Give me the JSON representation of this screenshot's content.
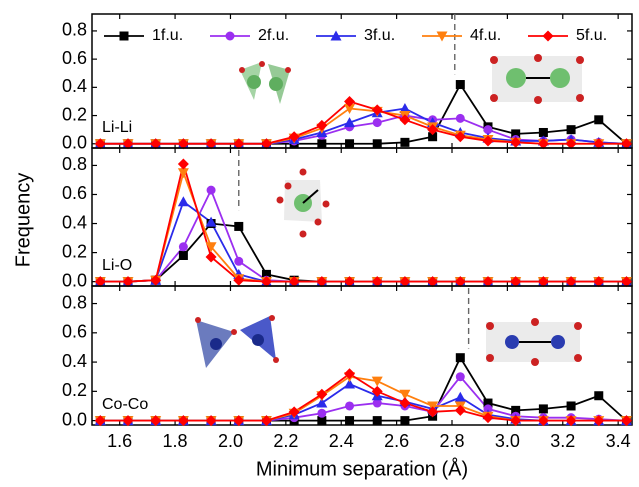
{
  "figure": {
    "xlabel": "Minimum separation (Å)",
    "ylabel": "Frequency"
  },
  "chart_data": [
    {
      "type": "line",
      "annotation": "Li-Li",
      "vline": 2.81,
      "x": [
        1.53,
        1.63,
        1.73,
        1.83,
        1.93,
        2.03,
        2.13,
        2.23,
        2.33,
        2.43,
        2.53,
        2.63,
        2.73,
        2.83,
        2.93,
        3.03,
        3.13,
        3.23,
        3.33,
        3.43
      ],
      "xlim": [
        1.5,
        3.45
      ],
      "ylim": [
        -0.03,
        0.92
      ],
      "xticks": [
        1.6,
        1.8,
        {
          "value": 2,
          "label": "2.0"
        },
        2.2,
        2.4,
        2.6,
        2.8,
        {
          "value": 3,
          "label": "3.0"
        },
        3.2,
        3.4
      ],
      "yticks": [
        {
          "value": 0,
          "label": "0.0"
        },
        0.2,
        0.4,
        0.6,
        0.8
      ],
      "series": [
        {
          "name": "1f.u.",
          "color": "#000000",
          "marker": "square",
          "values": [
            0,
            0,
            0,
            0,
            0,
            0,
            0,
            0,
            0,
            0,
            0,
            0.01,
            0.05,
            0.42,
            0.12,
            0.07,
            0.08,
            0.1,
            0.17,
            0
          ]
        },
        {
          "name": "2f.u.",
          "color": "#9b2ff0",
          "marker": "circle",
          "values": [
            0,
            0,
            0,
            0,
            0,
            0,
            0,
            0.02,
            0.06,
            0.12,
            0.15,
            0.2,
            0.17,
            0.18,
            0.1,
            0.03,
            0.02,
            0.03,
            0.01,
            0
          ]
        },
        {
          "name": "3f.u.",
          "color": "#2b2bea",
          "marker": "triangle-up",
          "values": [
            0,
            0,
            0,
            0,
            0,
            0,
            0,
            0.03,
            0.08,
            0.15,
            0.22,
            0.25,
            0.15,
            0.08,
            0.04,
            0.02,
            0.02,
            0.03,
            0.01,
            0
          ]
        },
        {
          "name": "4f.u.",
          "color": "#ff7f0e",
          "marker": "triangle-down",
          "values": [
            0,
            0,
            0,
            0,
            0,
            0,
            0,
            0.04,
            0.11,
            0.25,
            0.23,
            0.2,
            0.12,
            0.06,
            0.03,
            0.01,
            0,
            0,
            0,
            0
          ]
        },
        {
          "name": "5f.u.",
          "color": "#ff0000",
          "marker": "diamond",
          "values": [
            0,
            0,
            0,
            0,
            0,
            0,
            0,
            0.05,
            0.13,
            0.3,
            0.24,
            0.17,
            0.1,
            0.05,
            0.02,
            0.01,
            0,
            0,
            0,
            0
          ]
        }
      ]
    },
    {
      "type": "line",
      "annotation": "Li-O",
      "vline": 2.03,
      "x": [
        1.53,
        1.63,
        1.73,
        1.83,
        1.93,
        2.03,
        2.13,
        2.23,
        2.33,
        2.43,
        2.53,
        2.63,
        2.73,
        2.83,
        2.93,
        3.03,
        3.13,
        3.23,
        3.33,
        3.43
      ],
      "xlim": [
        1.5,
        3.45
      ],
      "ylim": [
        -0.03,
        0.92
      ],
      "xticks": [
        1.6,
        1.8,
        {
          "value": 2,
          "label": "2.0"
        },
        2.2,
        2.4,
        2.6,
        2.8,
        {
          "value": 3,
          "label": "3.0"
        },
        3.2,
        3.4
      ],
      "yticks": [
        {
          "value": 0,
          "label": "0.0"
        },
        0.2,
        0.4,
        0.6,
        0.8
      ],
      "series": [
        {
          "color": "#000000",
          "marker": "square",
          "values": [
            0,
            0,
            0.01,
            0.18,
            0.4,
            0.38,
            0.05,
            0.01,
            0,
            0,
            0,
            0,
            0,
            0,
            0,
            0,
            0,
            0,
            0,
            0
          ]
        },
        {
          "color": "#9b2ff0",
          "marker": "circle",
          "values": [
            0,
            0,
            0.01,
            0.24,
            0.63,
            0.14,
            0.01,
            0,
            0,
            0,
            0,
            0,
            0,
            0,
            0,
            0,
            0,
            0,
            0,
            0
          ]
        },
        {
          "color": "#2b2bea",
          "marker": "triangle-up",
          "values": [
            0,
            0,
            0.01,
            0.55,
            0.41,
            0.05,
            0,
            0,
            0,
            0,
            0,
            0,
            0,
            0,
            0,
            0,
            0,
            0,
            0,
            0
          ]
        },
        {
          "color": "#ff7f0e",
          "marker": "triangle-down",
          "values": [
            0,
            0,
            0.01,
            0.75,
            0.24,
            0.02,
            0,
            0,
            0,
            0,
            0,
            0,
            0,
            0,
            0,
            0,
            0,
            0,
            0,
            0
          ]
        },
        {
          "color": "#ff0000",
          "marker": "diamond",
          "values": [
            0,
            0,
            0.01,
            0.81,
            0.17,
            0.01,
            0,
            0,
            0,
            0,
            0,
            0,
            0,
            0,
            0,
            0,
            0,
            0,
            0,
            0
          ]
        }
      ]
    },
    {
      "type": "line",
      "annotation": "Co-Co",
      "vline": 2.86,
      "x": [
        1.53,
        1.63,
        1.73,
        1.83,
        1.93,
        2.03,
        2.13,
        2.23,
        2.33,
        2.43,
        2.53,
        2.63,
        2.73,
        2.83,
        2.93,
        3.03,
        3.13,
        3.23,
        3.33,
        3.43
      ],
      "xlim": [
        1.5,
        3.45
      ],
      "ylim": [
        -0.03,
        0.92
      ],
      "xticks": [
        1.6,
        1.8,
        {
          "value": 2,
          "label": "2.0"
        },
        2.2,
        2.4,
        2.6,
        2.8,
        {
          "value": 3,
          "label": "3.0"
        },
        3.2,
        3.4
      ],
      "yticks": [
        {
          "value": 0,
          "label": "0.0"
        },
        0.2,
        0.4,
        0.6,
        0.8
      ],
      "series": [
        {
          "color": "#000000",
          "marker": "square",
          "values": [
            0,
            0,
            0,
            0,
            0,
            0,
            0,
            0,
            0,
            0,
            0,
            0,
            0.03,
            0.43,
            0.12,
            0.07,
            0.08,
            0.1,
            0.17,
            0
          ]
        },
        {
          "color": "#9b2ff0",
          "marker": "circle",
          "values": [
            0,
            0,
            0,
            0,
            0,
            0,
            0,
            0.02,
            0.05,
            0.1,
            0.12,
            0.1,
            0.06,
            0.3,
            0.08,
            0.03,
            0.02,
            0.02,
            0.01,
            0
          ]
        },
        {
          "color": "#2b2bea",
          "marker": "triangle-up",
          "values": [
            0,
            0,
            0,
            0,
            0,
            0,
            0,
            0.04,
            0.12,
            0.25,
            0.17,
            0.13,
            0.08,
            0.16,
            0.04,
            0.01,
            0,
            0,
            0,
            0
          ]
        },
        {
          "color": "#ff7f0e",
          "marker": "triangle-down",
          "values": [
            0,
            0,
            0,
            0,
            0,
            0,
            0,
            0.05,
            0.17,
            0.3,
            0.27,
            0.18,
            0.1,
            0.1,
            0.03,
            0,
            0,
            0,
            0,
            0
          ]
        },
        {
          "color": "#ff0000",
          "marker": "diamond",
          "values": [
            0,
            0,
            0,
            0,
            0,
            0,
            0,
            0.06,
            0.18,
            0.32,
            0.2,
            0.12,
            0.06,
            0.07,
            0.02,
            0,
            0,
            0,
            0,
            0
          ]
        }
      ]
    }
  ]
}
